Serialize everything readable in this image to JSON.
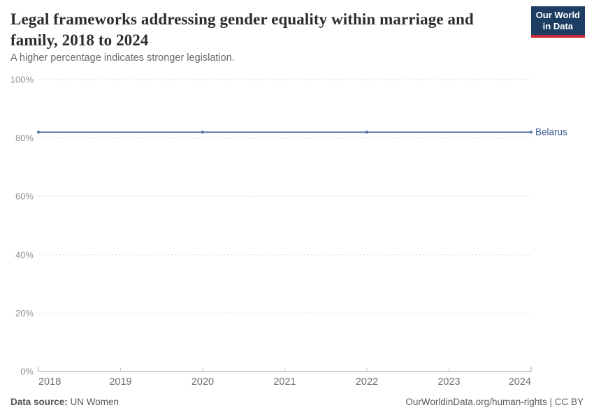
{
  "header": {
    "title": "Legal frameworks addressing gender equality within marriage and family, 2018 to 2024",
    "subtitle": "A higher percentage indicates stronger legislation.",
    "logo": {
      "line1": "Our World",
      "line2": "in Data",
      "bg_color": "#1d3d63",
      "accent_color": "#cc2b36"
    }
  },
  "chart_data": {
    "type": "line",
    "title": "Legal frameworks addressing gender equality within marriage and family, 2018 to 2024",
    "subtitle": "A higher percentage indicates stronger legislation.",
    "x": [
      2018,
      2020,
      2022,
      2024
    ],
    "series": [
      {
        "name": "Belarus",
        "values": [
          82,
          82,
          82,
          82
        ],
        "color": "#4e6ca3"
      }
    ],
    "xticks": [
      2018,
      2019,
      2020,
      2021,
      2022,
      2023,
      2024
    ],
    "yticks": [
      "0%",
      "20%",
      "40%",
      "60%",
      "80%",
      "100%"
    ],
    "xlim": [
      2018,
      2024
    ],
    "ylim": [
      0,
      100
    ],
    "xlabel": "",
    "ylabel": "",
    "grid": "horizontal-dashed",
    "legend_position": "right-of-line-end",
    "grid_color": "#d8d8d8",
    "axis_color": "#a3a3a3",
    "tick_color": "#c6c6c6",
    "entity_label_color": "#3d5c96"
  },
  "footer": {
    "source_label": "Data source:",
    "source_value": " UN Women",
    "right_text": "OurWorldinData.org/human-rights | CC BY"
  }
}
